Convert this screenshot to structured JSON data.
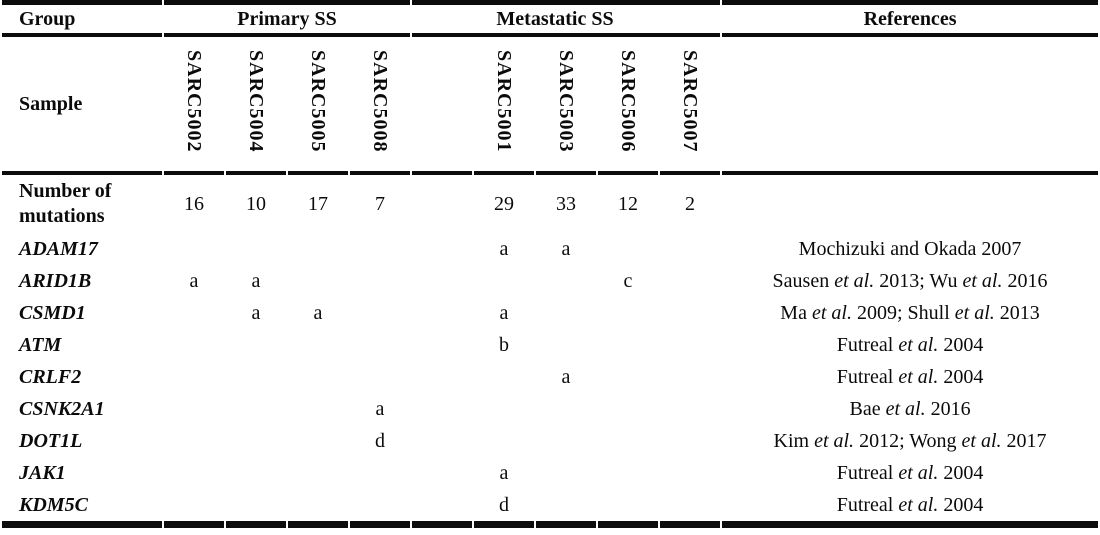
{
  "table": {
    "header": {
      "group": "Group",
      "primary": "Primary SS",
      "metastatic": "Metastatic SS",
      "references": "References"
    },
    "sample_row_label": "Sample",
    "samples": {
      "primary": [
        "SARC5002",
        "SARC5004",
        "SARC5005",
        "SARC5008"
      ],
      "metastatic": [
        "SARC5001",
        "SARC5003",
        "SARC5006",
        "SARC5007"
      ]
    },
    "mutations_row": {
      "label": "Number of mutations",
      "primary": [
        "16",
        "10",
        "17",
        "7"
      ],
      "metastatic": [
        "29",
        "33",
        "12",
        "2"
      ]
    },
    "genes": [
      {
        "name": "ADAM17",
        "primary": [
          "",
          "",
          "",
          ""
        ],
        "metastatic": [
          "a",
          "a",
          "",
          ""
        ],
        "reference": "Mochizuki and Okada 2007"
      },
      {
        "name": "ARID1B",
        "primary": [
          "a",
          "a",
          "",
          ""
        ],
        "metastatic": [
          "",
          "",
          "c",
          ""
        ],
        "reference": "Sausen et al. 2013; Wu et al. 2016"
      },
      {
        "name": "CSMD1",
        "primary": [
          "",
          "a",
          "a",
          ""
        ],
        "metastatic": [
          "a",
          "",
          "",
          ""
        ],
        "reference": "Ma et al. 2009; Shull et al. 2013"
      },
      {
        "name": "ATM",
        "primary": [
          "",
          "",
          "",
          ""
        ],
        "metastatic": [
          "b",
          "",
          "",
          ""
        ],
        "reference": "Futreal et al. 2004"
      },
      {
        "name": "CRLF2",
        "primary": [
          "",
          "",
          "",
          ""
        ],
        "metastatic": [
          "",
          "a",
          "",
          ""
        ],
        "reference": "Futreal et al. 2004"
      },
      {
        "name": "CSNK2A1",
        "primary": [
          "",
          "",
          "",
          "a"
        ],
        "metastatic": [
          "",
          "",
          "",
          ""
        ],
        "reference": "Bae et al. 2016"
      },
      {
        "name": "DOT1L",
        "primary": [
          "",
          "",
          "",
          "d"
        ],
        "metastatic": [
          "",
          "",
          "",
          ""
        ],
        "reference": "Kim et al. 2012; Wong et al. 2017"
      },
      {
        "name": "JAK1",
        "primary": [
          "",
          "",
          "",
          ""
        ],
        "metastatic": [
          "a",
          "",
          "",
          ""
        ],
        "reference": "Futreal et al. 2004"
      },
      {
        "name": "KDM5C",
        "primary": [
          "",
          "",
          "",
          ""
        ],
        "metastatic": [
          "d",
          "",
          "",
          ""
        ],
        "reference": "Futreal et al. 2004"
      }
    ]
  }
}
